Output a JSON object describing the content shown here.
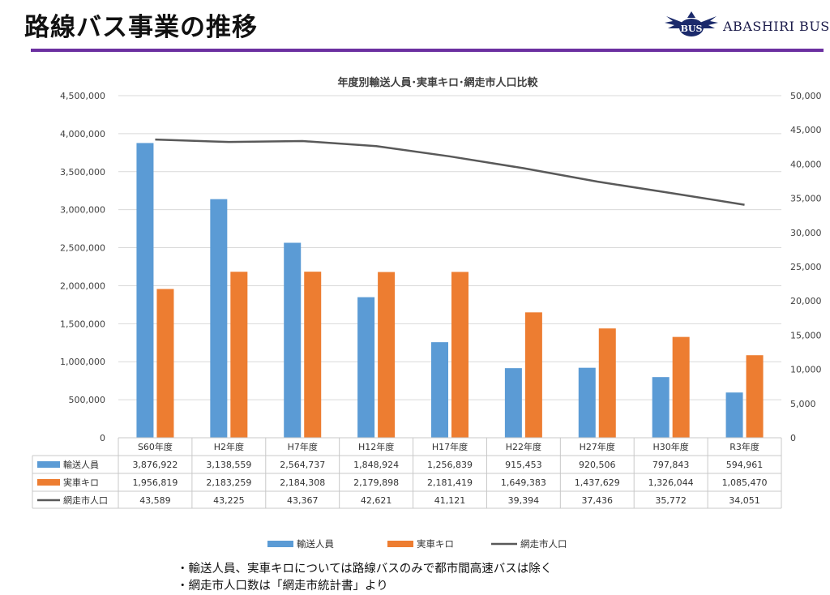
{
  "header": {
    "title": "路線バス事業の推移",
    "brand": "ABASHIRI BUS",
    "brand_mark": "BUS"
  },
  "colors": {
    "accent_rule": "#6b2fa0",
    "bar1": "#5b9bd5",
    "bar2": "#ed7d31",
    "line": "#595959"
  },
  "chart_data": {
    "type": "bar",
    "title": "年度別輸送人員･実車キロ･網走市人口比較",
    "categories": [
      "S60年度",
      "H2年度",
      "H7年度",
      "H12年度",
      "H17年度",
      "H22年度",
      "H27年度",
      "H30年度",
      "R3年度"
    ],
    "series": [
      {
        "name": "輸送人員",
        "kind": "bar",
        "axis": "left",
        "values": [
          3876922,
          3138559,
          2564737,
          1848924,
          1256839,
          915453,
          920506,
          797843,
          594961
        ],
        "labels": [
          "3,876,922",
          "3,138,559",
          "2,564,737",
          "1,848,924",
          "1,256,839",
          "915,453",
          "920,506",
          "797,843",
          "594,961"
        ]
      },
      {
        "name": "実車キロ",
        "kind": "bar",
        "axis": "left",
        "values": [
          1956819,
          2183259,
          2184308,
          2179898,
          2181419,
          1649383,
          1437629,
          1326044,
          1085470
        ],
        "labels": [
          "1,956,819",
          "2,183,259",
          "2,184,308",
          "2,179,898",
          "2,181,419",
          "1,649,383",
          "1,437,629",
          "1,326,044",
          "1,085,470"
        ]
      },
      {
        "name": "網走市人口",
        "kind": "line",
        "axis": "right",
        "values": [
          43589,
          43225,
          43367,
          42621,
          41121,
          39394,
          37436,
          35772,
          34051
        ],
        "labels": [
          "43,589",
          "43,225",
          "43,367",
          "42,621",
          "41,121",
          "39,394",
          "37,436",
          "35,772",
          "34,051"
        ]
      }
    ],
    "ylim": [
      0,
      4500000
    ],
    "y2lim": [
      0,
      50000
    ],
    "yticks": [
      "0",
      "500,000",
      "1,000,000",
      "1,500,000",
      "2,000,000",
      "2,500,000",
      "3,000,000",
      "3,500,000",
      "4,000,000",
      "4,500,000"
    ],
    "y2ticks": [
      "0",
      "5,000",
      "10,000",
      "15,000",
      "20,000",
      "25,000",
      "30,000",
      "35,000",
      "40,000",
      "45,000",
      "50,000"
    ],
    "grid": true,
    "legend": "bottom",
    "data_table": true
  },
  "footnotes": [
    "・輸送人員、実車キロについては路線バスのみで都市間高速バスは除く",
    "・網走市人口数は「網走市統計書」より"
  ]
}
